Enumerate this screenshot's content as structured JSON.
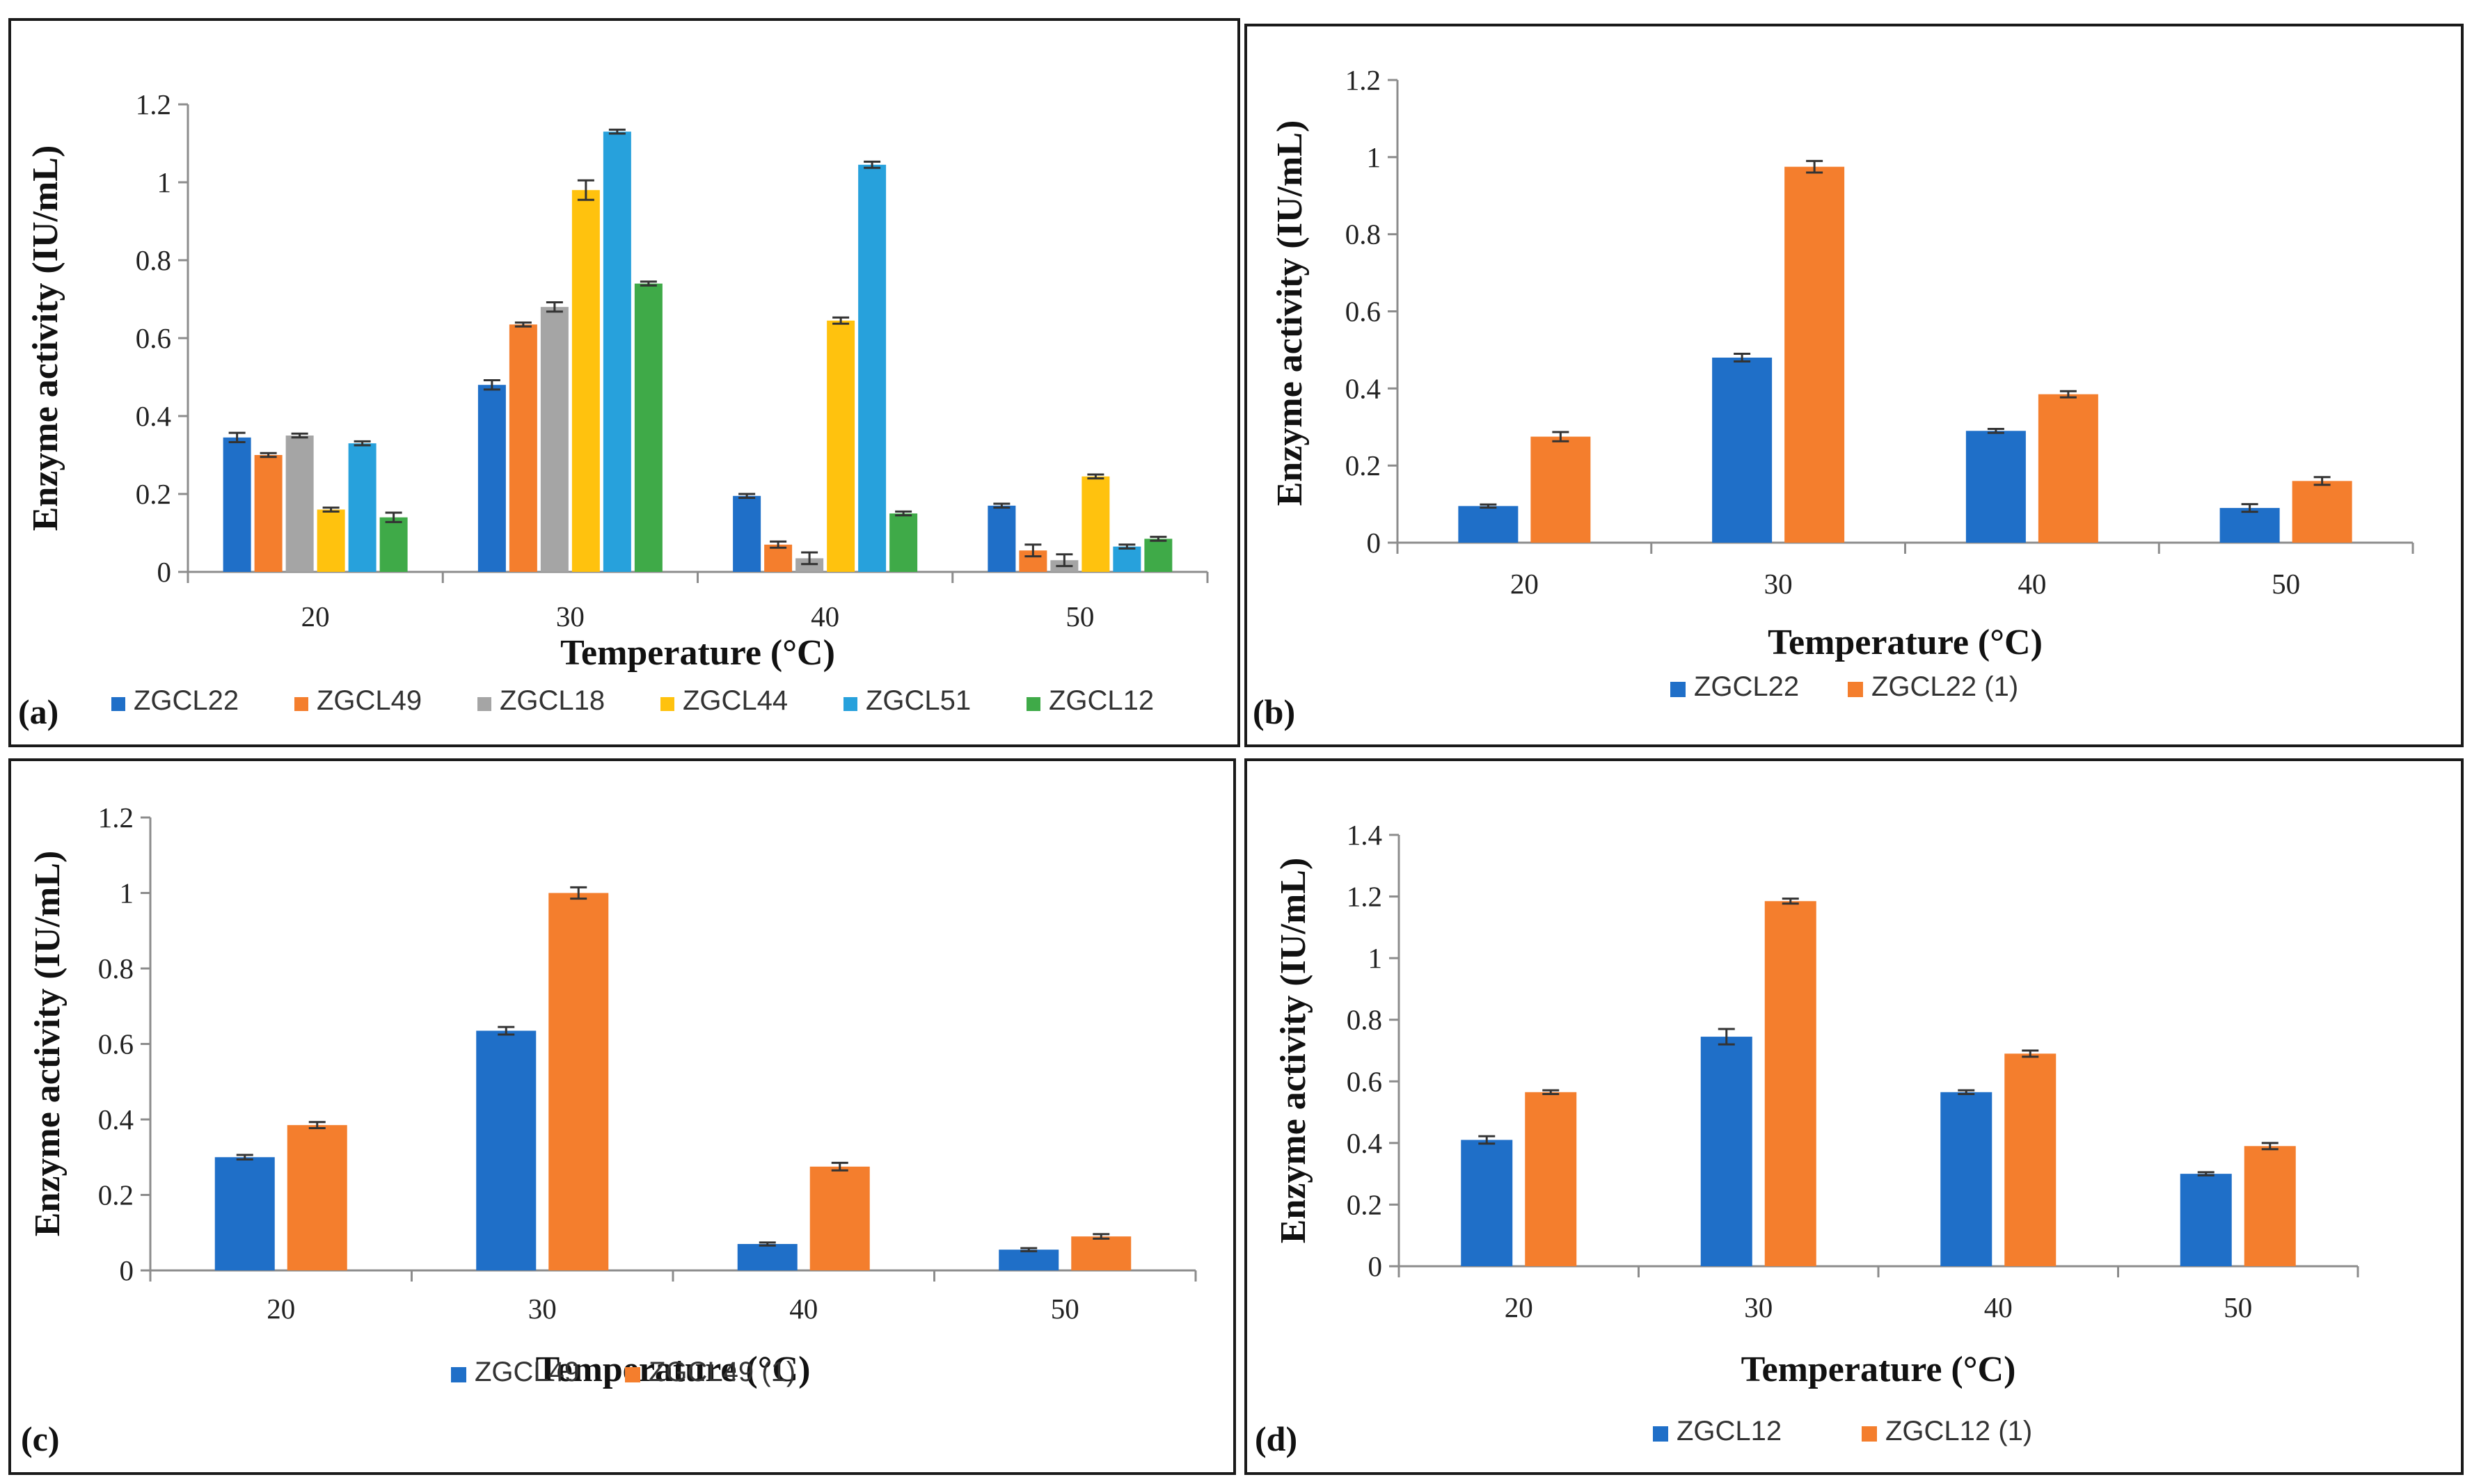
{
  "chart_data": [
    {
      "panel_label": "(a)",
      "type": "bar",
      "categories": [
        "20",
        "30",
        "40",
        "50"
      ],
      "series": [
        {
          "name": "ZGCL22",
          "color": "#1F6FC8",
          "values": [
            0.345,
            0.48,
            0.195,
            0.17
          ],
          "errors": [
            0.012,
            0.012,
            0.005,
            0.005
          ]
        },
        {
          "name": "ZGCL49",
          "color": "#F47E2D",
          "values": [
            0.3,
            0.635,
            0.07,
            0.055
          ],
          "errors": [
            0.005,
            0.005,
            0.008,
            0.015
          ]
        },
        {
          "name": "ZGCL18",
          "color": "#A5A5A5",
          "values": [
            0.35,
            0.68,
            0.035,
            0.03
          ],
          "errors": [
            0.005,
            0.012,
            0.015,
            0.015
          ]
        },
        {
          "name": "ZGCL44",
          "color": "#FFC20E",
          "values": [
            0.16,
            0.98,
            0.645,
            0.245
          ],
          "errors": [
            0.005,
            0.025,
            0.008,
            0.005
          ]
        },
        {
          "name": "ZGCL51",
          "color": "#27A1DC",
          "values": [
            0.33,
            1.13,
            1.045,
            0.065
          ],
          "errors": [
            0.005,
            0.005,
            0.008,
            0.005
          ]
        },
        {
          "name": "ZGCL12",
          "color": "#3FAA48",
          "values": [
            0.14,
            0.74,
            0.15,
            0.085
          ],
          "errors": [
            0.012,
            0.005,
            0.005,
            0.005
          ]
        }
      ],
      "xlabel": "Temperature  (°C)",
      "ylabel": "Enzyme  activity  (IU/mL)",
      "ylim": [
        0,
        1.2
      ],
      "yticks": [
        "0",
        "0.2",
        "0.4",
        "0.6",
        "0.8",
        "1",
        "1.2"
      ],
      "grid": false,
      "legend": "bottom"
    },
    {
      "panel_label": "(b)",
      "type": "bar",
      "categories": [
        "20",
        "30",
        "40",
        "50"
      ],
      "series": [
        {
          "name": "ZGCL22",
          "color": "#1F6FC8",
          "values": [
            0.095,
            0.48,
            0.29,
            0.09
          ],
          "errors": [
            0.004,
            0.01,
            0.005,
            0.01
          ]
        },
        {
          "name": "ZGCL22 (1)",
          "color": "#F47E2D",
          "values": [
            0.275,
            0.975,
            0.385,
            0.16
          ],
          "errors": [
            0.012,
            0.015,
            0.008,
            0.01
          ]
        }
      ],
      "xlabel": "Temperature  (°C)",
      "ylabel": "Enzyme  activity  (IU/mL)",
      "ylim": [
        0,
        1.2
      ],
      "yticks": [
        "0",
        "0.2",
        "0.4",
        "0.6",
        "0.8",
        "1",
        "1.2"
      ],
      "grid": false,
      "legend": "bottom"
    },
    {
      "panel_label": "(c)",
      "type": "bar",
      "categories": [
        "20",
        "30",
        "40",
        "50"
      ],
      "series": [
        {
          "name": "ZGCL49",
          "color": "#1F6FC8",
          "values": [
            0.3,
            0.635,
            0.07,
            0.055
          ],
          "errors": [
            0.006,
            0.01,
            0.004,
            0.004
          ]
        },
        {
          "name": "ZGCL49 (1)",
          "color": "#F47E2D",
          "values": [
            0.385,
            1.0,
            0.275,
            0.09
          ],
          "errors": [
            0.008,
            0.015,
            0.01,
            0.006
          ]
        }
      ],
      "xlabel": "Temperature  (°C)",
      "ylabel": "Enzyme  activity  (IU/mL)",
      "ylim": [
        0,
        1.2
      ],
      "yticks": [
        "0",
        "0.2",
        "0.4",
        "0.6",
        "0.8",
        "1",
        "1.2"
      ],
      "grid": false,
      "legend": "bottom"
    },
    {
      "panel_label": "(d)",
      "type": "bar",
      "categories": [
        "20",
        "30",
        "40",
        "50"
      ],
      "series": [
        {
          "name": "ZGCL12",
          "color": "#1F6FC8",
          "values": [
            0.41,
            0.745,
            0.565,
            0.3
          ],
          "errors": [
            0.012,
            0.025,
            0.006,
            0.005
          ]
        },
        {
          "name": "ZGCL12 (1)",
          "color": "#F47E2D",
          "values": [
            0.565,
            1.185,
            0.69,
            0.39
          ],
          "errors": [
            0.006,
            0.008,
            0.01,
            0.01
          ]
        }
      ],
      "xlabel": "Temperature  (°C)",
      "ylabel": "Enzyme  activity  (IU/mL)",
      "ylim": [
        0,
        1.4
      ],
      "yticks": [
        "0",
        "0.2",
        "0.4",
        "0.6",
        "0.8",
        "1",
        "1.2",
        "1.4"
      ],
      "grid": false,
      "legend": "bottom"
    }
  ]
}
